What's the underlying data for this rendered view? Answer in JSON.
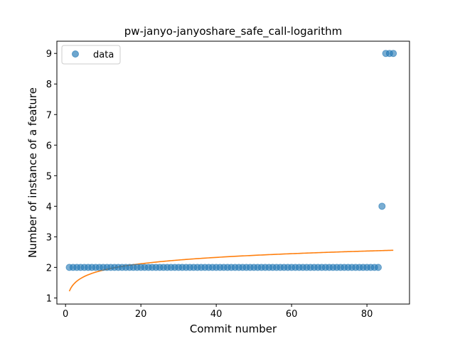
{
  "chart_data": {
    "type": "scatter",
    "title": "pw-janyo-janyoshare_safe_call-logarithm",
    "xlabel": "Commit number",
    "ylabel": "Number of instance of a feature",
    "xlim": [
      -2.3,
      91.3
    ],
    "ylim": [
      0.8,
      9.4
    ],
    "xticks": [
      0,
      20,
      40,
      60,
      80
    ],
    "yticks": [
      1,
      2,
      3,
      4,
      5,
      6,
      7,
      8,
      9
    ],
    "legend": {
      "position": "top-left",
      "entries": [
        "data"
      ]
    },
    "series": [
      {
        "name": "data",
        "kind": "scatter",
        "color": "#1f77b4",
        "x": [
          1,
          2,
          3,
          4,
          5,
          6,
          7,
          8,
          9,
          10,
          11,
          12,
          13,
          14,
          15,
          16,
          17,
          18,
          19,
          20,
          21,
          22,
          23,
          24,
          25,
          26,
          27,
          28,
          29,
          30,
          31,
          32,
          33,
          34,
          35,
          36,
          37,
          38,
          39,
          40,
          41,
          42,
          43,
          44,
          45,
          46,
          47,
          48,
          49,
          50,
          51,
          52,
          53,
          54,
          55,
          56,
          57,
          58,
          59,
          60,
          61,
          62,
          63,
          64,
          65,
          66,
          67,
          68,
          69,
          70,
          71,
          72,
          73,
          74,
          75,
          76,
          77,
          78,
          79,
          80,
          81,
          82,
          83,
          84,
          85,
          86,
          87
        ],
        "y": [
          2,
          2,
          2,
          2,
          2,
          2,
          2,
          2,
          2,
          2,
          2,
          2,
          2,
          2,
          2,
          2,
          2,
          2,
          2,
          2,
          2,
          2,
          2,
          2,
          2,
          2,
          2,
          2,
          2,
          2,
          2,
          2,
          2,
          2,
          2,
          2,
          2,
          2,
          2,
          2,
          2,
          2,
          2,
          2,
          2,
          2,
          2,
          2,
          2,
          2,
          2,
          2,
          2,
          2,
          2,
          2,
          2,
          2,
          2,
          2,
          2,
          2,
          2,
          2,
          2,
          2,
          2,
          2,
          2,
          2,
          2,
          2,
          2,
          2,
          2,
          2,
          2,
          2,
          2,
          2,
          2,
          2,
          2,
          4,
          9,
          9,
          9
        ]
      },
      {
        "name": "logarithmic fit",
        "kind": "line",
        "color": "#ff7f0e",
        "fit": {
          "a": 1.22,
          "b": 0.3,
          "x_start": 1,
          "x_end": 87
        }
      }
    ]
  }
}
